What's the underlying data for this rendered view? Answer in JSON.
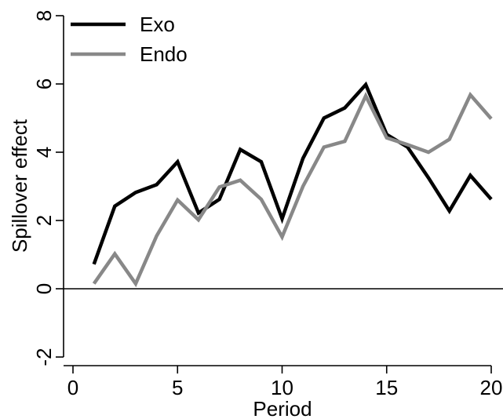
{
  "chart_data": {
    "type": "line",
    "title": "",
    "xlabel": "Period",
    "ylabel": "Spillover effect",
    "xlim": [
      0,
      20
    ],
    "ylim": [
      -2,
      8
    ],
    "xticks": [
      0,
      5,
      10,
      15,
      20
    ],
    "yticks": [
      -2,
      0,
      2,
      4,
      6,
      8
    ],
    "reference_line_y": 0,
    "grid": false,
    "legend_position": "top-left",
    "x": [
      1,
      2,
      3,
      4,
      5,
      6,
      7,
      8,
      9,
      10,
      11,
      12,
      13,
      14,
      15,
      16,
      17,
      18,
      19,
      20
    ],
    "series": [
      {
        "name": "Exo",
        "color": "#000000",
        "values": [
          0.72,
          2.42,
          2.82,
          3.05,
          3.72,
          2.22,
          2.62,
          4.08,
          3.72,
          2.05,
          3.82,
          5.0,
          5.3,
          5.98,
          4.52,
          4.15,
          3.25,
          2.28,
          3.32,
          2.62
        ]
      },
      {
        "name": "Endo",
        "color": "#888888",
        "values": [
          0.15,
          1.02,
          0.15,
          1.55,
          2.6,
          2.02,
          2.98,
          3.18,
          2.62,
          1.52,
          3.0,
          4.15,
          4.32,
          5.65,
          4.42,
          4.22,
          4.0,
          4.38,
          5.68,
          4.98
        ]
      }
    ]
  }
}
